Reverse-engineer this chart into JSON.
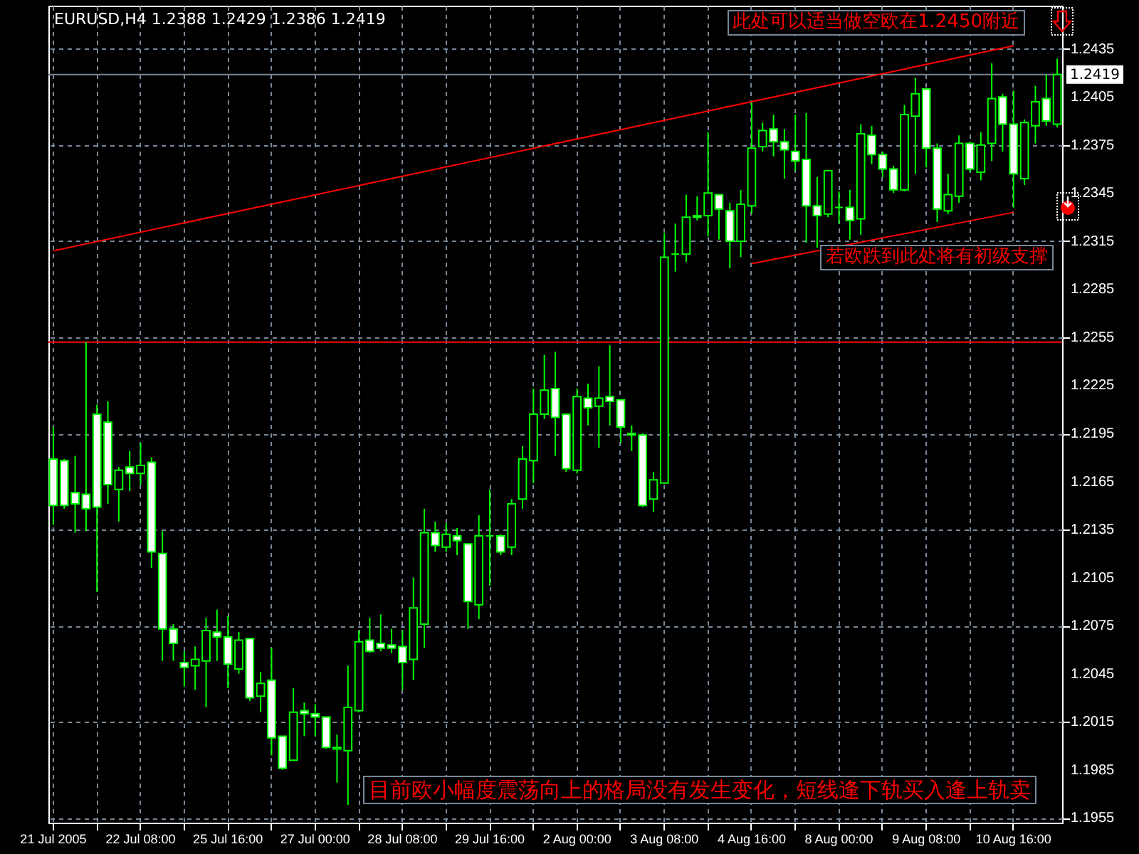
{
  "chart_data": {
    "type": "candlestick",
    "title": "EURUSD,H4  1.2388 1.2429 1.2386 1.2419",
    "categories": [
      "21 Jul 2005",
      null,
      null,
      null,
      null,
      null,
      null,
      null,
      "22 Jul 08:00",
      null,
      null,
      null,
      null,
      null,
      null,
      null,
      "25 Jul 16:00",
      null,
      null,
      null,
      null,
      null,
      null,
      null,
      "27 Jul 00:00",
      null,
      null,
      null,
      null,
      null,
      null,
      null,
      "28 Jul 08:00",
      null,
      null,
      null,
      null,
      null,
      null,
      null,
      "29 Jul 16:00",
      null,
      null,
      null,
      null,
      null,
      null,
      null,
      "2 Aug 00:00",
      null,
      null,
      null,
      null,
      null,
      null,
      null,
      "3 Aug 08:00",
      null,
      null,
      null,
      null,
      null,
      null,
      null,
      "4 Aug 16:00",
      null,
      null,
      null,
      null,
      null,
      null,
      null,
      "8 Aug 00:00",
      null,
      null,
      null,
      null,
      null,
      null,
      null,
      "9 Aug 08:00",
      null,
      null,
      null,
      null,
      null,
      null,
      null,
      "10 Aug 16:00",
      null,
      null,
      null,
      null
    ],
    "ohlc": [
      [
        1.2179,
        1.2199,
        1.2138,
        1.215
      ],
      [
        1.2178,
        1.2179,
        1.2148,
        1.215
      ],
      [
        1.2158,
        1.2181,
        1.2133,
        1.2151
      ],
      [
        1.2157,
        1.2252,
        1.2134,
        1.2148
      ],
      [
        1.2207,
        1.2213,
        1.2096,
        1.2149
      ],
      [
        1.2202,
        1.2215,
        1.2151,
        1.2163
      ],
      [
        1.216,
        1.2174,
        1.214,
        1.2172
      ],
      [
        1.2174,
        1.2184,
        1.2159,
        1.217
      ],
      [
        1.217,
        1.2189,
        1.2163,
        1.2175
      ],
      [
        1.2177,
        1.218,
        1.2111,
        1.2121
      ],
      [
        1.212,
        1.2134,
        1.2053,
        1.2073
      ],
      [
        1.2073,
        1.2076,
        1.2053,
        1.2064
      ],
      [
        1.2052,
        1.2059,
        1.2037,
        1.2049
      ],
      [
        1.205,
        1.2062,
        1.2035,
        1.2054
      ],
      [
        1.2053,
        1.208,
        1.2024,
        1.2072
      ],
      [
        1.2071,
        1.2085,
        1.2053,
        1.2068
      ],
      [
        1.2068,
        1.2081,
        1.2036,
        1.2051
      ],
      [
        1.2048,
        1.2071,
        1.2045,
        1.2066
      ],
      [
        1.2067,
        1.2067,
        1.2028,
        1.203
      ],
      [
        1.2031,
        1.2046,
        1.2021,
        1.2039
      ],
      [
        1.2041,
        1.2061,
        1.1994,
        1.2005
      ],
      [
        1.2006,
        1.2006,
        1.1985,
        1.1986
      ],
      [
        1.1991,
        1.2036,
        1.1991,
        1.2021
      ],
      [
        1.2022,
        1.2027,
        1.2006,
        1.202
      ],
      [
        1.202,
        1.2026,
        1.2006,
        1.2018
      ],
      [
        1.2018,
        1.2018,
        1.1998,
        1.1999
      ],
      [
        1.1998,
        1.2007,
        1.1977,
        1.1999
      ],
      [
        1.1997,
        1.205,
        1.1963,
        1.2024
      ],
      [
        1.2022,
        1.2072,
        1.2021,
        1.2065
      ],
      [
        1.2066,
        1.208,
        1.2058,
        1.2059
      ],
      [
        1.2064,
        1.2082,
        1.2059,
        1.2061
      ],
      [
        1.2063,
        1.2073,
        1.2058,
        1.2061
      ],
      [
        1.2062,
        1.2072,
        1.2035,
        1.2052
      ],
      [
        1.2054,
        1.2105,
        1.2041,
        1.2086
      ],
      [
        1.2076,
        1.2148,
        1.2061,
        1.2133
      ],
      [
        1.2133,
        1.214,
        1.2121,
        1.2125
      ],
      [
        1.2124,
        1.2139,
        1.2121,
        1.2132
      ],
      [
        1.2131,
        1.2136,
        1.2119,
        1.2128
      ],
      [
        1.2126,
        1.2126,
        1.2073,
        1.209
      ],
      [
        1.2088,
        1.2144,
        1.2079,
        1.2131
      ],
      [
        1.2131,
        1.216,
        1.21,
        1.2131
      ],
      [
        1.2131,
        1.2132,
        1.2119,
        1.2121
      ],
      [
        1.2124,
        1.2154,
        1.2119,
        1.2151
      ],
      [
        1.2154,
        1.2187,
        1.2148,
        1.2179
      ],
      [
        1.2178,
        1.2223,
        1.2164,
        1.2207
      ],
      [
        1.2207,
        1.2244,
        1.2204,
        1.2222
      ],
      [
        1.2223,
        1.2246,
        1.2181,
        1.2205
      ],
      [
        1.2207,
        1.2207,
        1.2171,
        1.2173
      ],
      [
        1.2172,
        1.2223,
        1.217,
        1.2218
      ],
      [
        1.2217,
        1.2226,
        1.22,
        1.2211
      ],
      [
        1.2212,
        1.2237,
        1.2186,
        1.2217
      ],
      [
        1.2218,
        1.225,
        1.22,
        1.2215
      ],
      [
        1.2216,
        1.2216,
        1.2189,
        1.2199
      ],
      [
        1.2195,
        1.22,
        1.2184,
        1.2194
      ],
      [
        1.2194,
        1.2195,
        1.2149,
        1.215
      ],
      [
        1.2154,
        1.2171,
        1.2146,
        1.2166
      ],
      [
        1.2164,
        1.232,
        1.2164,
        1.2305
      ],
      [
        1.2307,
        1.2326,
        1.2296,
        1.2307
      ],
      [
        1.2307,
        1.2344,
        1.2302,
        1.233
      ],
      [
        1.2331,
        1.2343,
        1.2328,
        1.233
      ],
      [
        1.2331,
        1.2383,
        1.2318,
        1.2345
      ],
      [
        1.2344,
        1.2344,
        1.2316,
        1.2335
      ],
      [
        1.2334,
        1.2339,
        1.2298,
        1.2315
      ],
      [
        1.2315,
        1.2347,
        1.2305,
        1.2338
      ],
      [
        1.2337,
        1.2402,
        1.2332,
        1.2373
      ],
      [
        1.2374,
        1.2389,
        1.2371,
        1.2384
      ],
      [
        1.2385,
        1.2394,
        1.2368,
        1.2377
      ],
      [
        1.2377,
        1.2385,
        1.2354,
        1.2372
      ],
      [
        1.2371,
        1.2394,
        1.2359,
        1.2365
      ],
      [
        1.2366,
        1.2395,
        1.2314,
        1.2337
      ],
      [
        1.2337,
        1.2355,
        1.2311,
        1.2331
      ],
      [
        1.2332,
        1.2359,
        1.233,
        1.2359
      ],
      [
        1.2336,
        1.2346,
        1.2326,
        1.2336
      ],
      [
        1.2336,
        1.2347,
        1.2316,
        1.2328
      ],
      [
        1.2329,
        1.2388,
        1.2319,
        1.2382
      ],
      [
        1.2381,
        1.2387,
        1.2363,
        1.2369
      ],
      [
        1.2369,
        1.2371,
        1.2355,
        1.236
      ],
      [
        1.236,
        1.2362,
        1.2345,
        1.2347
      ],
      [
        1.2347,
        1.24,
        1.2346,
        1.2394
      ],
      [
        1.2393,
        1.2417,
        1.2357,
        1.2407
      ],
      [
        1.241,
        1.241,
        1.2361,
        1.2373
      ],
      [
        1.2373,
        1.2376,
        1.2327,
        1.2335
      ],
      [
        1.2334,
        1.2357,
        1.2332,
        1.2344
      ],
      [
        1.2343,
        1.2381,
        1.2339,
        1.2376
      ],
      [
        1.2376,
        1.2377,
        1.2358,
        1.236
      ],
      [
        1.2358,
        1.2383,
        1.2353,
        1.2375
      ],
      [
        1.2376,
        1.2426,
        1.2365,
        1.2404
      ],
      [
        1.2405,
        1.2407,
        1.2371,
        1.2388
      ],
      [
        1.2388,
        1.2409,
        1.2336,
        1.2357
      ],
      [
        1.2354,
        1.2391,
        1.235,
        1.2389
      ],
      [
        1.2387,
        1.2412,
        1.2376,
        1.2402
      ],
      [
        1.2404,
        1.2419,
        1.2387,
        1.239
      ],
      [
        1.2388,
        1.2429,
        1.2386,
        1.2419
      ]
    ],
    "series": [
      {
        "type": "line",
        "color": "#ff0000",
        "x": [
          "21 Jul 2005",
          "10 Aug 16:00"
        ],
        "values": [
          1.2309,
          1.2437
        ]
      },
      {
        "type": "line",
        "color": "#ff0000",
        "x": [
          "4 Aug 16:00",
          "10 Aug 16:00"
        ],
        "values": [
          1.2301,
          1.2333
        ]
      }
    ],
    "ref_lines": [
      {
        "axis": "y",
        "value": 1.2419,
        "label": "1.2419",
        "color": "#778899"
      },
      {
        "axis": "y",
        "value": 1.2252,
        "color": "#ff0000"
      }
    ],
    "ylim": [
      1.1952,
      1.2462
    ],
    "yticks": [
      1.1955,
      1.1985,
      1.2015,
      1.2045,
      1.2075,
      1.2105,
      1.2135,
      1.2165,
      1.2195,
      1.2225,
      1.2255,
      1.2285,
      1.2315,
      1.2345,
      1.2375,
      1.2405,
      1.2435
    ],
    "grid": true,
    "annotations": [
      "此处可以适当做空欧在1.2450附近",
      "若欧跌到此处将有初级支撑",
      "目前欧小幅度震荡向上的格局没有发生变化，短线逢下轨买入逢上轨卖"
    ]
  }
}
